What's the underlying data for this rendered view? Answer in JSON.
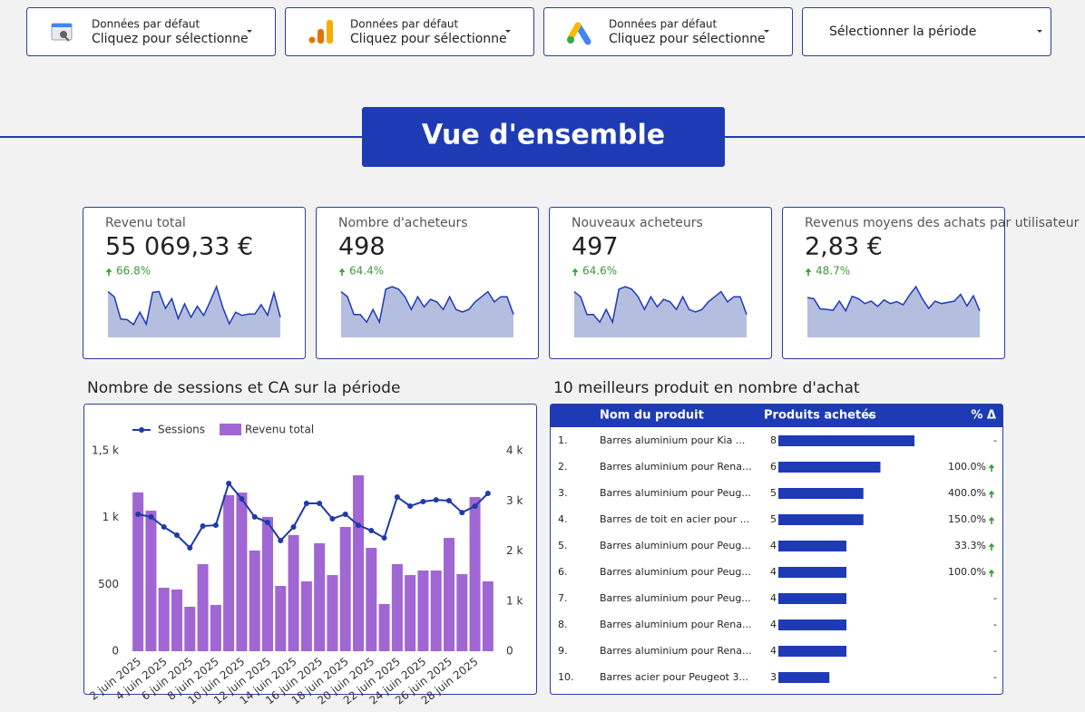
{
  "filters": [
    {
      "label": "Données par défaut",
      "value": "Cliquez pour sélectionne"
    },
    {
      "label": "Données par défaut",
      "value": "Cliquez pour sélectionne"
    },
    {
      "label": "Données par défaut",
      "value": "Cliquez pour sélectionne"
    },
    {
      "value": "Sélectionner la période"
    }
  ],
  "section_title": "Vue d'ensemble",
  "scorecards": [
    {
      "label": "Revenu total",
      "value": "55 069,33 €",
      "change": "66.8%",
      "sparkline": [
        3170,
        2805,
        1267,
        1231,
        887,
        1738,
        923,
        3113,
        3167,
        2009,
        2679,
        1303,
        2317,
        1394,
        2154,
        1520,
        2480,
        3511,
        2063,
        941,
        1738,
        1520,
        1611,
        1611,
        2262,
        1538,
        3077,
        1394
      ]
    },
    {
      "label": "Nombre d'acheteurs",
      "value": "498",
      "change": "64.4%",
      "sparkline": [
        18,
        16,
        9,
        9,
        6,
        11,
        6,
        19,
        20,
        19,
        16,
        11,
        16,
        12,
        15,
        14,
        11,
        16,
        11,
        10,
        11,
        14,
        16,
        18,
        14,
        16,
        16,
        9
      ]
    },
    {
      "label": "Nouveaux acheteurs",
      "value": "497",
      "change": "64.6%",
      "sparkline": [
        18,
        16,
        9,
        9,
        6,
        11,
        6,
        19,
        20,
        19,
        16,
        11,
        16,
        12,
        15,
        14,
        11,
        16,
        11,
        10,
        11,
        14,
        16,
        18,
        14,
        16,
        16,
        9
      ]
    },
    {
      "label": "Revenus moyens des achats par utilisateur",
      "value": "2,83 €",
      "change": "48.7%",
      "sparkline": [
        165,
        160,
        118,
        116,
        112,
        150,
        110,
        170,
        160,
        140,
        150,
        128,
        155,
        140,
        148,
        135,
        175,
        210,
        160,
        120,
        150,
        140,
        145,
        150,
        178,
        130,
        172,
        110
      ]
    }
  ],
  "combo_chart": {
    "type": "combo",
    "title": "Nombre de sessions et CA sur la période",
    "legend": "top-left",
    "categories": [
      "2 juin 2025",
      null,
      "4 juin 2025",
      null,
      "6 juin 2025",
      null,
      "8 juin 2025",
      null,
      "10 juin 2025",
      null,
      "12 juin 2025",
      null,
      "14 juin 2025",
      null,
      "16 juin 2025",
      null,
      "18 juin 2025",
      null,
      "20 juin 2025",
      null,
      "22 juin 2025",
      null,
      "24 juin 2025",
      null,
      "26 juin 2025",
      null,
      "28 juin 2025",
      null
    ],
    "series": [
      {
        "name": "Sessions",
        "type": "line",
        "color": "#1d3aa8",
        "values": [
          1025,
          1005,
          930,
          869,
          774,
          937,
          943,
          1256,
          1140,
          1005,
          964,
          828,
          930,
          1106,
          1106,
          991,
          1025,
          943,
          903,
          848,
          1154,
          1086,
          1120,
          1133,
          1127,
          1038,
          1086,
          1181
        ]
      },
      {
        "name": "Revenu total",
        "type": "bar",
        "color": "#a066d3",
        "axis": "y2",
        "values": [
          3170,
          2805,
          1267,
          1231,
          887,
          1738,
          923,
          3113,
          3167,
          2009,
          2679,
          1303,
          2317,
          1394,
          2154,
          1520,
          2480,
          3511,
          2063,
          941,
          1738,
          1520,
          1611,
          1611,
          2262,
          1538,
          3077,
          1394
        ]
      }
    ],
    "ylim": [
      0,
      1500
    ],
    "yticks": [
      0,
      500,
      {
        "value": 1000,
        "label": "1 k"
      },
      {
        "value": 1500,
        "label": "1,5 k"
      }
    ],
    "y2lim": [
      0,
      4000
    ],
    "y2ticks": [
      0,
      {
        "value": 1000,
        "label": "1 k"
      },
      {
        "value": 2000,
        "label": "2 k"
      },
      {
        "value": 3000,
        "label": "3 k"
      },
      {
        "value": 4000,
        "label": "4 k"
      }
    ]
  },
  "table": {
    "title": "10 meilleurs produit en nombre d'achat",
    "columns": [
      "Nom du produit",
      "Produits achetés",
      "% Δ"
    ],
    "rows": [
      {
        "rank": "1.",
        "name": "Barres aluminium pour Kia ...",
        "value": 8,
        "delta": "-"
      },
      {
        "rank": "2.",
        "name": "Barres aluminium pour Rena...",
        "value": 6,
        "delta": "100.0%"
      },
      {
        "rank": "3.",
        "name": "Barres aluminium pour Peug...",
        "value": 5,
        "delta": "400.0%"
      },
      {
        "rank": "4.",
        "name": "Barres de toit en acier pour ...",
        "value": 5,
        "delta": "150.0%"
      },
      {
        "rank": "5.",
        "name": "Barres aluminium pour Peug...",
        "value": 4,
        "delta": "33.3%"
      },
      {
        "rank": "6.",
        "name": "Barres aluminium pour Peug...",
        "value": 4,
        "delta": "100.0%"
      },
      {
        "rank": "7.",
        "name": "Barres aluminium pour Peug...",
        "value": 4,
        "delta": "-"
      },
      {
        "rank": "8.",
        "name": "Barres aluminium pour Rena...",
        "value": 4,
        "delta": "-"
      },
      {
        "rank": "9.",
        "name": "Barres aluminium pour Rena...",
        "value": 4,
        "delta": "-"
      },
      {
        "rank": "10.",
        "name": "Barres acier pour Peugeot 3...",
        "value": 3,
        "delta": "-"
      }
    ]
  }
}
